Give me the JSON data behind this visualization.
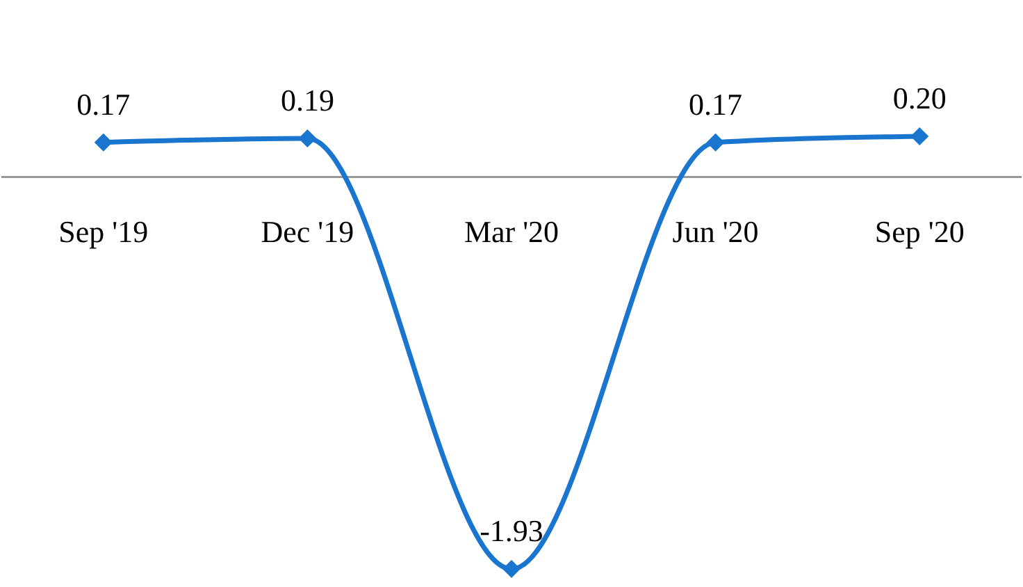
{
  "chart_data": {
    "type": "line",
    "categories": [
      "Sep '19",
      "Dec '19",
      "Mar '20",
      "Jun '20",
      "Sep '20"
    ],
    "series": [
      {
        "color": "#1a75cf",
        "values": [
          0.17,
          0.19,
          -1.93,
          0.17,
          0.2
        ],
        "value_labels": [
          "0.17",
          "0.19",
          "-1.93",
          "0.17",
          "0.20"
        ]
      }
    ],
    "marker": "diamond"
  }
}
